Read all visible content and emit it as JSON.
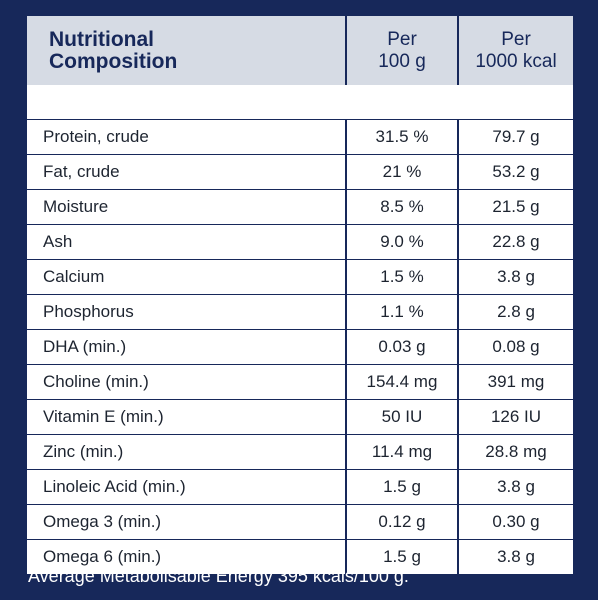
{
  "table": {
    "header": {
      "name_line1": "Nutritional",
      "name_line2": "Composition",
      "col2_line1": "Per",
      "col2_line2": "100 g",
      "col3_line1": "Per",
      "col3_line2": "1000 kcal"
    },
    "rows": [
      {
        "name": "Protein, crude",
        "per100g": "31.5 %",
        "per1000kcal": "79.7 g"
      },
      {
        "name": "Fat, crude",
        "per100g": "21 %",
        "per1000kcal": "53.2 g"
      },
      {
        "name": "Moisture",
        "per100g": "8.5 %",
        "per1000kcal": "21.5 g"
      },
      {
        "name": "Ash",
        "per100g": "9.0 %",
        "per1000kcal": "22.8 g"
      },
      {
        "name": "Calcium",
        "per100g": "1.5 %",
        "per1000kcal": "3.8 g"
      },
      {
        "name": "Phosphorus",
        "per100g": "1.1 %",
        "per1000kcal": "2.8 g"
      },
      {
        "name": "DHA (min.)",
        "per100g": "0.03 g",
        "per1000kcal": "0.08 g"
      },
      {
        "name": "Choline (min.)",
        "per100g": "154.4 mg",
        "per1000kcal": "391 mg"
      },
      {
        "name": "Vitamin E (min.)",
        "per100g": "50 IU",
        "per1000kcal": "126 IU"
      },
      {
        "name": "Zinc (min.)",
        "per100g": "11.4 mg",
        "per1000kcal": "28.8 mg"
      },
      {
        "name": "Linoleic Acid (min.)",
        "per100g": "1.5 g",
        "per1000kcal": "3.8 g"
      },
      {
        "name": "Omega 3 (min.)",
        "per100g": "0.12 g",
        "per1000kcal": "0.30 g"
      },
      {
        "name": "Omega 6 (min.)",
        "per100g": "1.5 g",
        "per1000kcal": "3.8 g"
      }
    ]
  },
  "footer": "Average Metabolisable Energy 395 kcals/100 g.",
  "colors": {
    "background": "#17285a",
    "header_fill": "#d6dbe4",
    "cell_fill": "#ffffff",
    "text_dark": "#1d2430"
  }
}
